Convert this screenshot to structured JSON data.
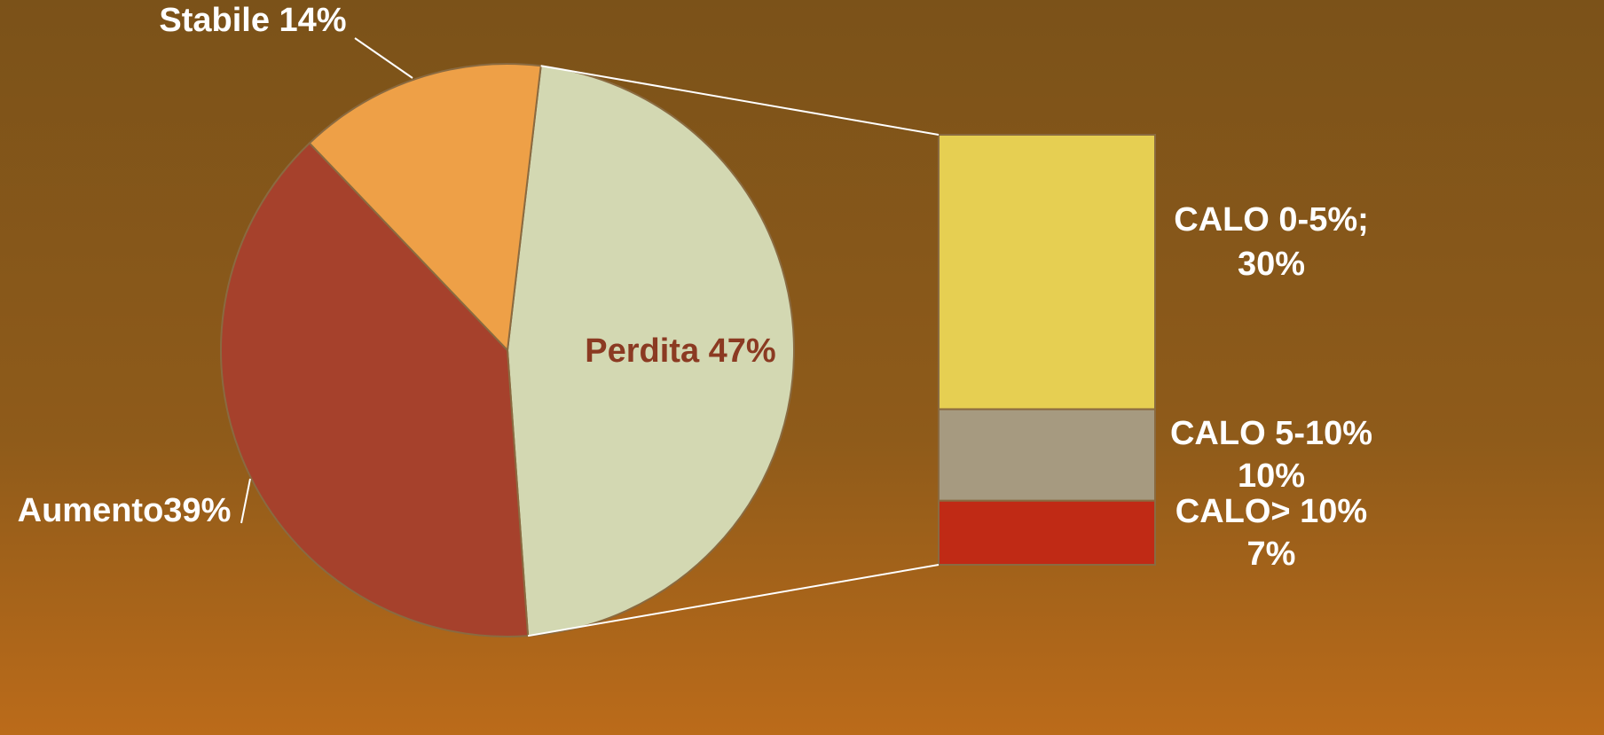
{
  "chart_data": [
    {
      "type": "pie",
      "values": [
        47,
        39,
        14
      ],
      "value_labels": [
        "Perdita 47%",
        "Aumento39%",
        "Stabile 14%"
      ],
      "colors": [
        "#d3d8b2",
        "#a6412c",
        "#eea047"
      ]
    },
    {
      "type": "bar",
      "categories": [
        "CALO 0-5%;",
        "CALO 5-10%",
        "CALO> 10%"
      ],
      "values": [
        30,
        10,
        7
      ],
      "value_labels": [
        "30%",
        "10%",
        "7%"
      ],
      "colors": [
        "#e6cf52",
        "#a69a80",
        "#c02a15"
      ]
    }
  ]
}
